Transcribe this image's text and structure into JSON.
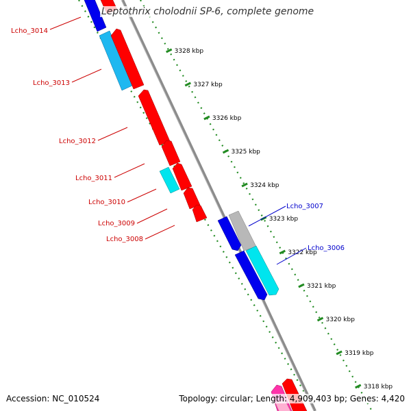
{
  "title": "Leptothrix cholodnii SP-6, complete genome",
  "footer": {
    "accession": "Accession: NC_010524",
    "stats": "Topology: circular; Length: 4,909,403 bp; Genes: 4,420"
  },
  "scale_labels": [
    "3328 kbp",
    "3327 kbp",
    "3326 kbp",
    "3325 kbp",
    "3324 kbp",
    "3323 kbp",
    "3322 kbp",
    "3321 kbp",
    "3320 kbp",
    "3319 kbp",
    "3318 kbp"
  ],
  "gene_labels": {
    "reverse": [
      "Lcho_3014",
      "Lcho_3013",
      "Lcho_3012",
      "Lcho_3011",
      "Lcho_3010",
      "Lcho_3009",
      "Lcho_3008"
    ],
    "forward": [
      "Lcho_3007",
      "Lcho_3006"
    ]
  },
  "colors": {
    "reverse_label": "#cc0000",
    "forward_label": "#0000cc",
    "backbone": "#8c8c8c",
    "tick": "#228b22",
    "red_gene": "#ff0000",
    "blue_gene": "#0000ee",
    "cyan_gene": "#00e5ee",
    "light_blue_gene": "#1fb8f0",
    "gray_gene": "#b8b8b8",
    "pink_gene": "#ff33aa"
  }
}
